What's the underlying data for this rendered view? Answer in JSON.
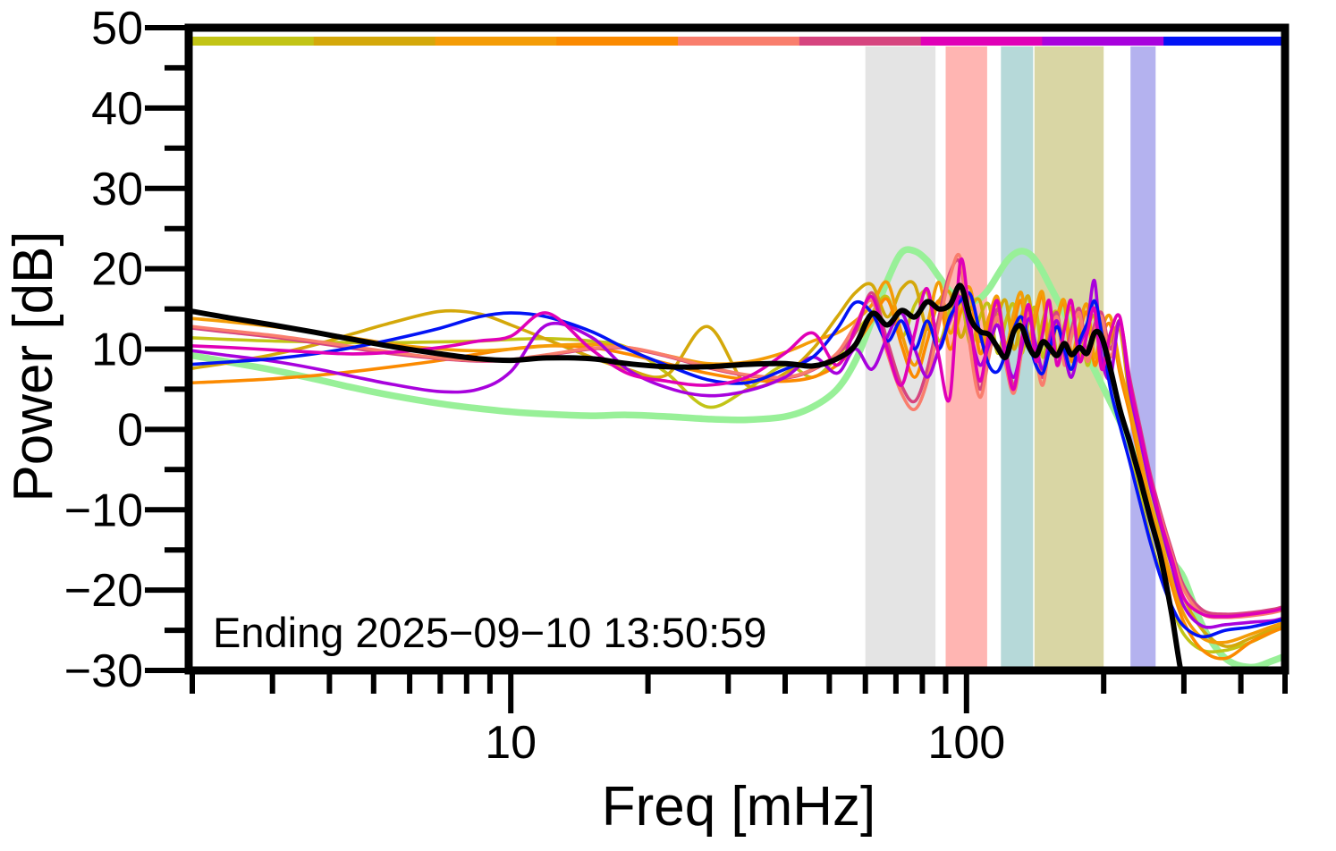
{
  "chart_data": {
    "type": "line",
    "title": "",
    "xlabel": "Freq [mHz]",
    "ylabel": "Power [dB]",
    "annotation": "Ending 2025−09−10 13:50:59",
    "xscale": "log",
    "xlim": [
      2,
      500
    ],
    "ylim": [
      -30,
      50
    ],
    "grid": false,
    "legend": "none",
    "x_major_ticks": {
      "values": [
        10,
        100
      ],
      "labels": [
        "10",
        "100"
      ]
    },
    "x_minor_ticks": [
      2,
      3,
      4,
      5,
      6,
      7,
      8,
      9,
      20,
      30,
      40,
      50,
      60,
      70,
      80,
      90,
      200,
      300,
      400,
      500
    ],
    "y_major_ticks": {
      "values": [
        50,
        40,
        30,
        20,
        10,
        0,
        -10,
        -20,
        -30
      ],
      "labels": [
        "50",
        "40",
        "30",
        "20",
        "10",
        "0",
        "−10",
        "−20",
        "−30"
      ]
    },
    "y_minor_ticks": [
      45,
      35,
      25,
      15,
      5,
      -5,
      -15,
      -25
    ],
    "bands": [
      {
        "name": "band-gray",
        "color": "#e4e4e4",
        "f_start": 60,
        "f_end": 85.5
      },
      {
        "name": "band-pink",
        "color": "#ffb5b2",
        "f_start": 90,
        "f_end": 111
      },
      {
        "name": "band-teal",
        "color": "#b6d9d9",
        "f_start": 119,
        "f_end": 140
      },
      {
        "name": "band-olive",
        "color": "#d9d6a4",
        "f_start": 141,
        "f_end": 200
      },
      {
        "name": "band-periwinkle",
        "color": "#b4b2ef",
        "f_start": 229,
        "f_end": 260
      }
    ],
    "colorbar_segments": [
      "#c2c416",
      "#d4a80a",
      "#f49c07",
      "#fb8a00",
      "#f97e6d",
      "#d6457f",
      "#e000b7",
      "#a802dd",
      "#0213f5"
    ],
    "x": [
      2,
      2.4,
      3,
      3.7,
      4.5,
      5.5,
      7,
      8.5,
      10,
      12,
      15,
      18,
      22,
      27,
      33,
      40,
      46,
      52,
      57,
      62,
      67,
      72,
      77,
      82,
      87,
      92,
      97,
      102,
      107,
      112,
      117,
      122,
      127,
      132,
      137,
      142,
      147,
      152,
      158,
      164,
      170,
      177,
      184,
      191,
      198,
      207,
      217,
      228,
      240,
      253,
      267,
      282,
      300,
      330,
      370,
      420,
      470,
      500
    ],
    "series": [
      {
        "name": "pale-green",
        "color": "#98f098",
        "width": 7.5,
        "y": [
          9.2,
          8.4,
          7.4,
          6.3,
          5.2,
          4.2,
          3.2,
          2.6,
          2.2,
          1.9,
          1.7,
          1.8,
          1.6,
          1.3,
          1.2,
          1.6,
          2.8,
          5.0,
          8.5,
          13.5,
          18.5,
          22.0,
          22.2,
          21.0,
          19.0,
          17.2,
          16.3,
          15.9,
          16.3,
          17.5,
          19.2,
          20.8,
          21.8,
          22.2,
          21.9,
          21.0,
          19.6,
          18.0,
          16.2,
          14.5,
          12.8,
          11.0,
          9.2,
          7.4,
          5.6,
          3.4,
          1.0,
          -1.8,
          -5.0,
          -8.6,
          -12.4,
          -16.2,
          -18.5,
          -24.5,
          -28.5,
          -29.6,
          -28.8,
          -28.2
        ]
      },
      {
        "name": "yellow-green",
        "color": "#c2c416",
        "width": 3.6,
        "y": [
          11.4,
          11.2,
          11.0,
          10.9,
          10.8,
          10.8,
          10.9,
          11.0,
          11.2,
          11.3,
          11.0,
          10.2,
          7.0,
          2.8,
          5.0,
          8.0,
          6.5,
          9.0,
          12.0,
          14.5,
          16.5,
          11.5,
          15.5,
          17.0,
          11.0,
          15.0,
          16.5,
          10.5,
          14.0,
          15.5,
          9.5,
          13.5,
          15.5,
          9.5,
          13.5,
          15.0,
          9.0,
          13.0,
          14.5,
          8.5,
          12.5,
          14.0,
          8.0,
          11.5,
          13.0,
          7.5,
          3.0,
          -2.0,
          -8.0,
          -13.5,
          -18.0,
          -22.0,
          -25.5,
          -27.5,
          -27.5,
          -26.5,
          -25.2,
          -24.6
        ]
      },
      {
        "name": "gold",
        "color": "#d4a80a",
        "width": 3.6,
        "y": [
          7.6,
          8.3,
          9.3,
          10.5,
          11.9,
          13.3,
          14.7,
          14.4,
          13.0,
          11.2,
          9.0,
          7.5,
          6.8,
          12.8,
          5.5,
          7.0,
          10.0,
          14.0,
          17.0,
          18.0,
          14.0,
          17.5,
          18.0,
          12.5,
          16.0,
          17.0,
          11.5,
          15.0,
          16.0,
          10.5,
          14.0,
          16.0,
          10.0,
          14.0,
          16.5,
          10.0,
          13.5,
          15.5,
          9.5,
          13.0,
          15.0,
          9.0,
          12.5,
          14.0,
          8.5,
          11.0,
          12.5,
          4.0,
          -1.0,
          -7.0,
          -12.5,
          -17.0,
          -21.0,
          -25.0,
          -27.0,
          -26.0,
          -24.8,
          -24.2
        ]
      },
      {
        "name": "dark-orange",
        "color": "#fb8a00",
        "width": 3.6,
        "y": [
          5.8,
          6.0,
          6.3,
          6.7,
          7.2,
          7.8,
          8.6,
          9.4,
          10.0,
          10.4,
          10.2,
          9.4,
          8.2,
          7.0,
          6.2,
          6.0,
          6.5,
          8.0,
          10.5,
          13.5,
          16.2,
          10.5,
          6.5,
          11.0,
          16.0,
          10.0,
          14.5,
          16.5,
          9.5,
          13.0,
          15.5,
          9.0,
          13.0,
          16.0,
          10.0,
          14.0,
          16.5,
          9.5,
          13.5,
          15.5,
          8.5,
          12.0,
          14.5,
          8.0,
          11.5,
          13.0,
          7.0,
          2.0,
          -4.0,
          -10.0,
          -15.0,
          -19.5,
          -24.0,
          -27.5,
          -28.5,
          -26.5,
          -25.2,
          -24.6
        ]
      },
      {
        "name": "orange",
        "color": "#f49c07",
        "width": 3.6,
        "y": [
          13.8,
          13.4,
          12.8,
          12.1,
          11.4,
          10.6,
          10.0,
          9.8,
          10.0,
          10.4,
          10.6,
          10.2,
          9.2,
          8.2,
          8.4,
          9.6,
          11.0,
          12.0,
          13.5,
          15.5,
          18.3,
          12.0,
          8.0,
          13.0,
          18.3,
          12.0,
          16.0,
          17.5,
          11.0,
          14.0,
          16.5,
          10.5,
          14.5,
          17.0,
          11.5,
          15.0,
          17.0,
          10.5,
          14.0,
          16.0,
          9.5,
          13.0,
          15.5,
          9.0,
          12.5,
          14.0,
          8.0,
          3.0,
          -3.0,
          -9.0,
          -14.0,
          -18.5,
          -23.0,
          -26.0,
          -26.5,
          -25.5,
          -24.5,
          -24.0
        ]
      },
      {
        "name": "crimson",
        "color": "#d6457f",
        "width": 3.6,
        "y": [
          12.6,
          12.1,
          11.5,
          10.8,
          10.1,
          9.4,
          8.8,
          8.5,
          8.6,
          9.2,
          10.0,
          10.1,
          9.1,
          7.7,
          6.7,
          6.4,
          7.4,
          9.4,
          12.0,
          17.0,
          11.0,
          5.5,
          3.5,
          7.5,
          14.0,
          19.5,
          20.5,
          11.0,
          5.0,
          10.0,
          15.0,
          10.0,
          5.5,
          10.5,
          15.0,
          10.0,
          6.5,
          11.5,
          14.5,
          9.0,
          12.5,
          15.0,
          9.5,
          13.0,
          14.5,
          10.0,
          13.5,
          6.5,
          0.5,
          -5.5,
          -10.5,
          -15.0,
          -19.5,
          -22.5,
          -23.0,
          -22.8,
          -22.4,
          -22.0
        ]
      },
      {
        "name": "salmon",
        "color": "#f97e6d",
        "width": 3.6,
        "y": [
          12.8,
          12.3,
          11.7,
          11.0,
          10.3,
          9.6,
          8.9,
          8.6,
          8.7,
          9.3,
          10.1,
          10.2,
          9.2,
          7.8,
          6.8,
          6.5,
          7.5,
          9.5,
          13.0,
          16.0,
          9.5,
          4.5,
          2.5,
          6.0,
          13.0,
          19.0,
          21.3,
          10.0,
          4.0,
          9.0,
          14.0,
          8.0,
          4.5,
          9.5,
          14.5,
          9.0,
          5.5,
          10.5,
          14.0,
          8.0,
          11.5,
          14.5,
          8.5,
          12.0,
          14.0,
          9.0,
          13.0,
          5.5,
          -0.5,
          -6.5,
          -11.0,
          -15.5,
          -20.0,
          -23.0,
          -23.4,
          -23.2,
          -22.8,
          -22.4
        ]
      },
      {
        "name": "purple",
        "color": "#a802dd",
        "width": 3.6,
        "y": [
          9.8,
          9.2,
          8.5,
          7.6,
          6.6,
          5.6,
          4.7,
          5.0,
          7.2,
          13.0,
          11.5,
          7.5,
          5.2,
          4.2,
          4.8,
          6.5,
          9.0,
          7.0,
          10.0,
          7.5,
          11.5,
          14.5,
          10.0,
          6.5,
          10.0,
          13.5,
          16.5,
          12.0,
          8.0,
          10.5,
          13.0,
          9.0,
          6.5,
          10.0,
          13.8,
          10.5,
          7.5,
          11.0,
          13.5,
          9.5,
          6.5,
          10.5,
          13.0,
          18.5,
          9.0,
          6.5,
          13.5,
          5.0,
          -1.0,
          -7.0,
          -12.0,
          -17.0,
          -22.0,
          -24.5,
          -24.3,
          -24.0,
          -23.8,
          -23.4
        ]
      },
      {
        "name": "blue",
        "color": "#0213f5",
        "width": 3.6,
        "y": [
          8.1,
          8.4,
          8.8,
          9.4,
          10.2,
          11.2,
          12.6,
          14.0,
          14.5,
          14.0,
          12.2,
          10.0,
          8.0,
          6.2,
          5.8,
          7.5,
          9.0,
          12.5,
          15.8,
          14.5,
          11.0,
          13.5,
          10.0,
          13.5,
          10.0,
          14.0,
          16.0,
          16.8,
          12.0,
          8.0,
          7.2,
          9.5,
          12.5,
          14.0,
          11.0,
          8.0,
          7.0,
          9.8,
          12.8,
          10.0,
          7.5,
          11.0,
          13.2,
          16.0,
          12.0,
          5.0,
          0.5,
          -4.0,
          -9.0,
          -14.0,
          -18.5,
          -22.0,
          -24.5,
          -25.8,
          -25.0,
          -24.6,
          -24.0,
          -23.6
        ]
      },
      {
        "name": "magenta",
        "color": "#e000b7",
        "width": 3.6,
        "y": [
          10.4,
          10.2,
          9.9,
          9.6,
          9.4,
          9.6,
          10.2,
          11.0,
          11.6,
          14.5,
          10.0,
          7.0,
          6.0,
          5.5,
          6.5,
          9.5,
          12.0,
          8.0,
          12.5,
          16.5,
          10.0,
          5.5,
          12.0,
          17.5,
          9.0,
          4.0,
          21.0,
          13.0,
          6.0,
          12.0,
          16.0,
          9.0,
          5.0,
          11.0,
          15.5,
          8.5,
          12.0,
          16.0,
          8.0,
          12.5,
          16.0,
          8.5,
          12.0,
          15.0,
          7.5,
          12.0,
          14.0,
          6.0,
          0.0,
          -6.0,
          -11.5,
          -16.0,
          -21.0,
          -23.0,
          -23.3,
          -23.0,
          -22.6,
          -22.2
        ]
      },
      {
        "name": "black-mean",
        "color": "#000000",
        "width": 6,
        "y": [
          14.7,
          13.9,
          13.0,
          12.1,
          11.2,
          10.3,
          9.4,
          8.8,
          8.6,
          8.9,
          8.8,
          8.2,
          7.8,
          7.8,
          8.1,
          8.2,
          7.9,
          8.8,
          10.5,
          14.4,
          13.0,
          14.8,
          14.0,
          15.9,
          15.0,
          15.5,
          17.9,
          13.8,
          12.2,
          11.8,
          10.2,
          9.0,
          12.2,
          12.8,
          10.3,
          9.2,
          10.9,
          10.2,
          9.2,
          10.7,
          9.3,
          10.2,
          9.5,
          12.0,
          11.5,
          7.5,
          2.5,
          -1.5,
          -6.0,
          -11.0,
          -16.0,
          -23.0,
          -32.0,
          -40.0,
          -42.0,
          -42.0,
          -42.0,
          -42.0
        ]
      }
    ]
  }
}
